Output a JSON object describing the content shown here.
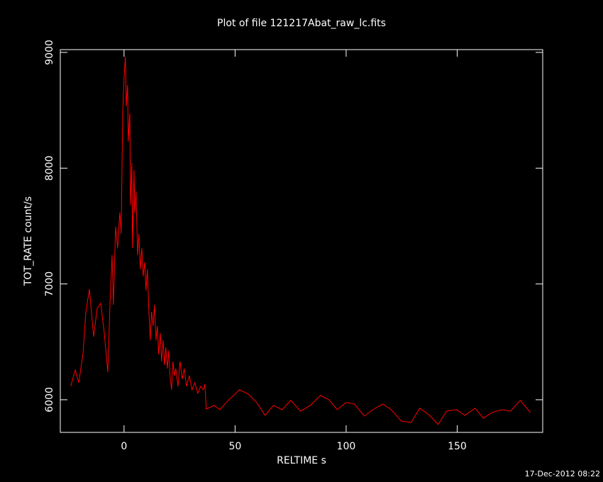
{
  "chart_data": {
    "type": "line",
    "title": "Plot of file 121217Abat_raw_lc.fits",
    "x_label": "RELTIME  s",
    "y_label": "TOT_RATE  count/s",
    "footer": "17-Dec-2012 08:22",
    "xlim": [
      -28.7,
      188.5
    ],
    "xticks": [
      0,
      50,
      100,
      150
    ],
    "ylim": [
      5718,
      9024
    ],
    "yticks": [
      6000,
      7000,
      8000,
      9000
    ],
    "x": [
      -24,
      -22,
      -20.4,
      -18.5,
      -17.2,
      -15.6,
      -13.7,
      -12.1,
      -10.5,
      -8.9,
      -7.3,
      -6.4,
      -5.4,
      -4.8,
      -3.8,
      -2.9,
      -1.9,
      -1.3,
      -0.6,
      0,
      0.6,
      1,
      1.6,
      1.9,
      2.6,
      2.9,
      3.5,
      3.8,
      4.5,
      4.8,
      5.4,
      6.1,
      6.7,
      7.3,
      8,
      8.6,
      9.3,
      9.9,
      10.5,
      11.2,
      11.8,
      12.4,
      13.1,
      13.7,
      14.4,
      15,
      15.6,
      16.3,
      16.9,
      17.6,
      18.2,
      18.8,
      19.5,
      20.1,
      20.7,
      21.4,
      22,
      22.7,
      23.3,
      24.3,
      25.2,
      26.2,
      27.1,
      28.1,
      29.4,
      30.6,
      31.9,
      33.2,
      34.5,
      35.7,
      36.4,
      37,
      38.6,
      40.5,
      43.1,
      46.9,
      52,
      55.9,
      59.7,
      63.5,
      67.3,
      71.2,
      75,
      79.5,
      83.9,
      88.4,
      92.2,
      96,
      99.9,
      103.7,
      108.2,
      112,
      116.5,
      120.3,
      124.8,
      129.3,
      133.1,
      137.6,
      141.4,
      145.2,
      149.7,
      153.5,
      158,
      161.8,
      165.7,
      170.1,
      174,
      178.4,
      182.9
    ],
    "series": [
      {
        "color": "#ff0000",
        "values": [
          6116,
          6257,
          6147,
          6392,
          6759,
          6955,
          6545,
          6790,
          6833,
          6576,
          6239,
          6790,
          7249,
          6820,
          7494,
          7310,
          7617,
          7433,
          8474,
          8780,
          8964,
          8535,
          8719,
          8229,
          8474,
          7678,
          8045,
          7310,
          7984,
          7617,
          7800,
          7249,
          7433,
          7127,
          7310,
          7066,
          7188,
          6943,
          7127,
          6759,
          6514,
          6759,
          6637,
          6820,
          6514,
          6637,
          6392,
          6576,
          6331,
          6514,
          6300,
          6453,
          6269,
          6423,
          6208,
          6086,
          6331,
          6208,
          6269,
          6116,
          6331,
          6178,
          6269,
          6116,
          6208,
          6086,
          6147,
          6055,
          6116,
          6086,
          6135,
          5920,
          5933,
          5951,
          5914,
          5994,
          6086,
          6049,
          5976,
          5865,
          5951,
          5914,
          5994,
          5902,
          5951,
          6037,
          6000,
          5914,
          5976,
          5963,
          5859,
          5914,
          5963,
          5914,
          5816,
          5804,
          5927,
          5865,
          5786,
          5902,
          5914,
          5865,
          5927,
          5841,
          5890,
          5914,
          5902,
          5994,
          5890
        ]
      }
    ]
  }
}
